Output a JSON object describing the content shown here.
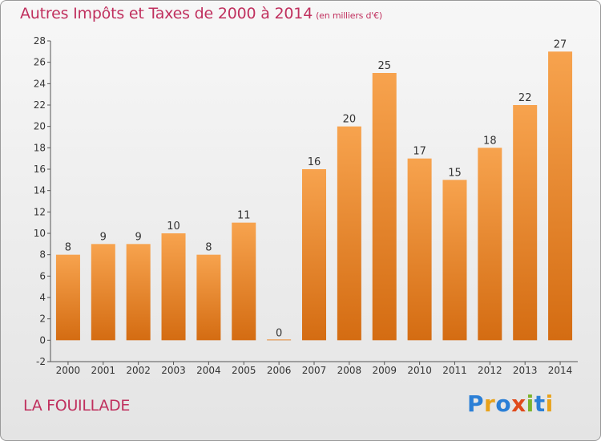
{
  "header": {
    "title": "Autres Impôts et Taxes de 2000 à 2014",
    "subtitle": "(en milliers d'€)"
  },
  "footer": {
    "location": "LA FOUILLADE",
    "logo_text": "Proxiti"
  },
  "colors": {
    "title": "#c0305e",
    "bar_light": "#f7a34e",
    "bar_dark": "#d46c12",
    "logo_letters": [
      "#2b7fd6",
      "#e8a21b",
      "#2b7fd6",
      "#e04a1b",
      "#7cb32c",
      "#2b7fd6",
      "#e8a21b"
    ]
  },
  "chart_data": {
    "type": "bar",
    "title": "Autres Impôts et Taxes de 2000 à 2014",
    "subtitle": "(en milliers d'€)",
    "categories": [
      "2000",
      "2001",
      "2002",
      "2003",
      "2004",
      "2005",
      "2006",
      "2007",
      "2008",
      "2009",
      "2010",
      "2011",
      "2012",
      "2013",
      "2014"
    ],
    "values": [
      8,
      9,
      9,
      10,
      8,
      11,
      0,
      16,
      20,
      25,
      17,
      15,
      18,
      22,
      27
    ],
    "ylim": [
      -2,
      28
    ],
    "yticks": [
      -2,
      0,
      2,
      4,
      6,
      8,
      10,
      12,
      14,
      16,
      18,
      20,
      22,
      24,
      26,
      28
    ],
    "grid": false,
    "legend": "none"
  }
}
